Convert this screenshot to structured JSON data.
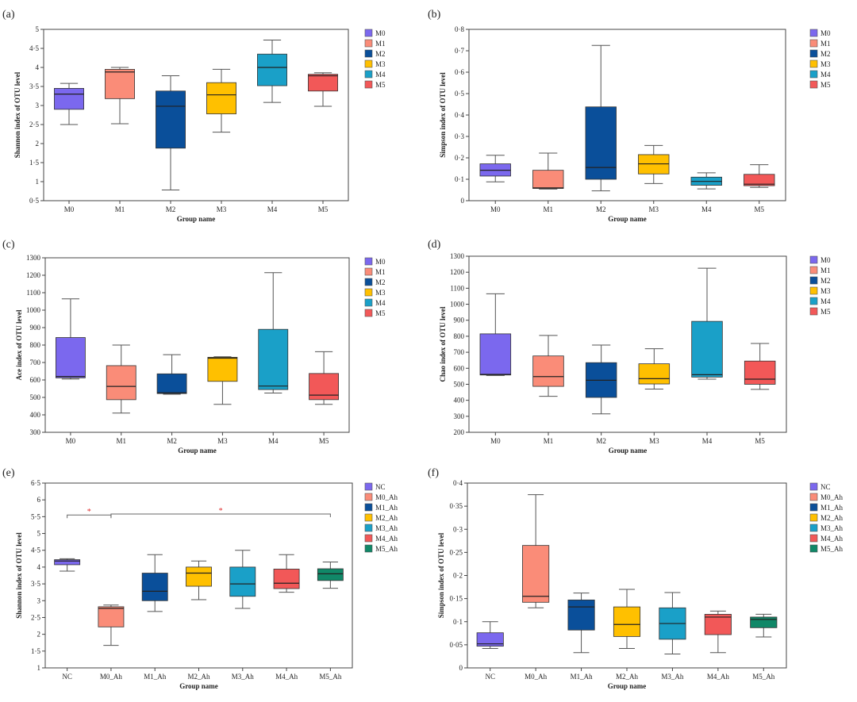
{
  "colors": {
    "M0": "#7b68ee",
    "M1": "#fa8c78",
    "M2": "#0a4f9a",
    "M3": "#ffc000",
    "M4": "#1aa0c8",
    "M5": "#f25858",
    "NC": "#7b68ee",
    "M0_Ah": "#fa8c78",
    "M1_Ah": "#0a4f9a",
    "M2_Ah": "#ffc000",
    "M3_Ah": "#1aa0c8",
    "M4_Ah": "#f25858",
    "M5_Ah": "#108868",
    "significance": "#e03030",
    "whisker": "#555555"
  },
  "chart_data": [
    {
      "type": "box",
      "panel_label": "(a)",
      "ylabel": "Shannon index of OTU level",
      "xlabel": "Group name",
      "ylim": [
        0.5,
        5
      ],
      "ytick_labels": [
        "0·5",
        "1",
        "1·5",
        "2",
        "2·5",
        "3",
        "3·5",
        "4",
        "4·5",
        "5"
      ],
      "ytick_values": [
        0.5,
        1,
        1.5,
        2,
        2.5,
        3,
        3.5,
        4,
        4.5,
        5
      ],
      "categories": [
        "M0",
        "M1",
        "M2",
        "M3",
        "M4",
        "M5"
      ],
      "legend": [
        "M0",
        "M1",
        "M2",
        "M3",
        "M4",
        "M5"
      ],
      "boxes": [
        {
          "min": 2.5,
          "q1": 2.9,
          "median": 3.3,
          "q3": 3.45,
          "max": 3.58
        },
        {
          "min": 2.52,
          "q1": 3.18,
          "median": 3.88,
          "q3": 3.95,
          "max": 4.0
        },
        {
          "min": 0.78,
          "q1": 1.88,
          "median": 2.98,
          "q3": 3.38,
          "max": 3.78
        },
        {
          "min": 2.3,
          "q1": 2.78,
          "median": 3.28,
          "q3": 3.6,
          "max": 3.95
        },
        {
          "min": 3.08,
          "q1": 3.52,
          "median": 4.0,
          "q3": 4.35,
          "max": 4.72
        },
        {
          "min": 2.98,
          "q1": 3.38,
          "median": 3.78,
          "q3": 3.82,
          "max": 3.86
        }
      ],
      "significance": []
    },
    {
      "type": "box",
      "panel_label": "(b)",
      "ylabel": "Simpson index of OTU level",
      "xlabel": "Group name",
      "ylim": [
        0,
        0.8
      ],
      "ytick_labels": [
        "0",
        "0·1",
        "0·2",
        "0·3",
        "0·4",
        "0·5",
        "0·6",
        "0·7",
        "0·8"
      ],
      "ytick_values": [
        0,
        0.1,
        0.2,
        0.3,
        0.4,
        0.5,
        0.6,
        0.7,
        0.8
      ],
      "categories": [
        "M0",
        "M1",
        "M2",
        "M3",
        "M4",
        "M5"
      ],
      "legend": [
        "M0",
        "M1",
        "M2",
        "M3",
        "M4",
        "M5"
      ],
      "boxes": [
        {
          "min": 0.088,
          "q1": 0.115,
          "median": 0.142,
          "q3": 0.172,
          "max": 0.212
        },
        {
          "min": 0.054,
          "q1": 0.057,
          "median": 0.06,
          "q3": 0.142,
          "max": 0.222
        },
        {
          "min": 0.046,
          "q1": 0.1,
          "median": 0.155,
          "q3": 0.438,
          "max": 0.725
        },
        {
          "min": 0.08,
          "q1": 0.125,
          "median": 0.172,
          "q3": 0.215,
          "max": 0.258
        },
        {
          "min": 0.055,
          "q1": 0.072,
          "median": 0.09,
          "q3": 0.11,
          "max": 0.13
        },
        {
          "min": 0.062,
          "q1": 0.07,
          "median": 0.077,
          "q3": 0.123,
          "max": 0.168
        }
      ],
      "significance": []
    },
    {
      "type": "box",
      "panel_label": "(c)",
      "ylabel": "Ace index of OTU level",
      "xlabel": "Group name",
      "ylim": [
        300,
        1300
      ],
      "ytick_labels": [
        "300",
        "400",
        "500",
        "600",
        "700",
        "800",
        "900",
        "1000",
        "1100",
        "1200",
        "1300"
      ],
      "ytick_values": [
        300,
        400,
        500,
        600,
        700,
        800,
        900,
        1000,
        1100,
        1200,
        1300
      ],
      "categories": [
        "M0",
        "M1",
        "M2",
        "M3",
        "M4",
        "M5"
      ],
      "legend": [
        "M0",
        "M1",
        "M2",
        "M3",
        "M4",
        "M5"
      ],
      "boxes": [
        {
          "min": 605,
          "q1": 612,
          "median": 620,
          "q3": 843,
          "max": 1065
        },
        {
          "min": 410,
          "q1": 487,
          "median": 563,
          "q3": 682,
          "max": 800
        },
        {
          "min": 518,
          "q1": 522,
          "median": 527,
          "q3": 635,
          "max": 745
        },
        {
          "min": 460,
          "q1": 592,
          "median": 725,
          "q3": 730,
          "max": 733
        },
        {
          "min": 525,
          "q1": 545,
          "median": 565,
          "q3": 890,
          "max": 1215
        },
        {
          "min": 460,
          "q1": 487,
          "median": 513,
          "q3": 637,
          "max": 762
        }
      ],
      "significance": []
    },
    {
      "type": "box",
      "panel_label": "(d)",
      "ylabel": "Chao index of OTU level",
      "xlabel": "Group name",
      "ylim": [
        200,
        1300
      ],
      "ytick_labels": [
        "200",
        "300",
        "400",
        "500",
        "600",
        "700",
        "800",
        "900",
        "1000",
        "1100",
        "1200",
        "1300"
      ],
      "ytick_values": [
        200,
        300,
        400,
        500,
        600,
        700,
        800,
        900,
        1000,
        1100,
        1200,
        1300
      ],
      "categories": [
        "M0",
        "M1",
        "M2",
        "M3",
        "M4",
        "M5"
      ],
      "legend": [
        "M0",
        "M1",
        "M2",
        "M3",
        "M4",
        "M5"
      ],
      "boxes": [
        {
          "min": 555,
          "q1": 558,
          "median": 562,
          "q3": 815,
          "max": 1065
        },
        {
          "min": 425,
          "q1": 487,
          "median": 548,
          "q3": 677,
          "max": 805
        },
        {
          "min": 315,
          "q1": 418,
          "median": 525,
          "q3": 635,
          "max": 745
        },
        {
          "min": 470,
          "q1": 502,
          "median": 535,
          "q3": 628,
          "max": 722
        },
        {
          "min": 532,
          "q1": 545,
          "median": 560,
          "q3": 893,
          "max": 1225
        },
        {
          "min": 468,
          "q1": 500,
          "median": 532,
          "q3": 645,
          "max": 755
        }
      ],
      "significance": []
    },
    {
      "type": "box",
      "panel_label": "(e)",
      "ylabel": "Shannon index of OTU level",
      "xlabel": "Group name",
      "ylim": [
        1,
        6.5
      ],
      "ytick_labels": [
        "1",
        "1·5",
        "2",
        "2·5",
        "3",
        "3·5",
        "4",
        "4·5",
        "5",
        "5·5",
        "6",
        "6·5"
      ],
      "ytick_values": [
        1,
        1.5,
        2,
        2.5,
        3,
        3.5,
        4,
        4.5,
        5,
        5.5,
        6,
        6.5
      ],
      "categories": [
        "NC",
        "M0_Ah",
        "M1_Ah",
        "M2_Ah",
        "M3_Ah",
        "M4_Ah",
        "M5_Ah"
      ],
      "legend": [
        "NC",
        "M0_Ah",
        "M1_Ah",
        "M2_Ah",
        "M3_Ah",
        "M4_Ah",
        "M5_Ah"
      ],
      "boxes": [
        {
          "min": 3.88,
          "q1": 4.07,
          "median": 4.18,
          "q3": 4.22,
          "max": 4.25
        },
        {
          "min": 1.67,
          "q1": 2.22,
          "median": 2.77,
          "q3": 2.82,
          "max": 2.87
        },
        {
          "min": 2.68,
          "q1": 3.0,
          "median": 3.28,
          "q3": 3.82,
          "max": 4.37
        },
        {
          "min": 3.03,
          "q1": 3.43,
          "median": 3.82,
          "q3": 4.0,
          "max": 4.18
        },
        {
          "min": 2.77,
          "q1": 3.13,
          "median": 3.5,
          "q3": 4.0,
          "max": 4.5
        },
        {
          "min": 3.25,
          "q1": 3.36,
          "median": 3.52,
          "q3": 3.94,
          "max": 4.37
        },
        {
          "min": 3.37,
          "q1": 3.6,
          "median": 3.8,
          "q3": 3.95,
          "max": 4.15
        }
      ],
      "significance": [
        {
          "from": 0,
          "to": 1,
          "y": 5.55,
          "label": "*"
        },
        {
          "from": 1,
          "to": 6,
          "y": 5.58,
          "label": "*"
        }
      ]
    },
    {
      "type": "box",
      "panel_label": "(f)",
      "ylabel": "Simpson index of OTU level",
      "xlabel": "Group name",
      "ylim": [
        0,
        0.4
      ],
      "ytick_labels": [
        "0",
        "0·05",
        "0·1",
        "0·15",
        "0·2",
        "0·25",
        "0·3",
        "0·35",
        "0·4"
      ],
      "ytick_values": [
        0,
        0.05,
        0.1,
        0.15,
        0.2,
        0.25,
        0.3,
        0.35,
        0.4
      ],
      "categories": [
        "NC",
        "M0_Ah",
        "M1_Ah",
        "M2_Ah",
        "M3_Ah",
        "M4_Ah",
        "M5_Ah"
      ],
      "legend": [
        "NC",
        "M0_Ah",
        "M1_Ah",
        "M2_Ah",
        "M3_Ah",
        "M4_Ah",
        "M5_Ah"
      ],
      "boxes": [
        {
          "min": 0.042,
          "q1": 0.047,
          "median": 0.052,
          "q3": 0.076,
          "max": 0.1
        },
        {
          "min": 0.13,
          "q1": 0.142,
          "median": 0.155,
          "q3": 0.265,
          "max": 0.375
        },
        {
          "min": 0.033,
          "q1": 0.082,
          "median": 0.132,
          "q3": 0.147,
          "max": 0.162
        },
        {
          "min": 0.042,
          "q1": 0.068,
          "median": 0.094,
          "q3": 0.132,
          "max": 0.17
        },
        {
          "min": 0.03,
          "q1": 0.062,
          "median": 0.096,
          "q3": 0.13,
          "max": 0.163
        },
        {
          "min": 0.033,
          "q1": 0.072,
          "median": 0.11,
          "q3": 0.116,
          "max": 0.123
        },
        {
          "min": 0.067,
          "q1": 0.087,
          "median": 0.105,
          "q3": 0.11,
          "max": 0.116
        }
      ],
      "significance": []
    }
  ]
}
